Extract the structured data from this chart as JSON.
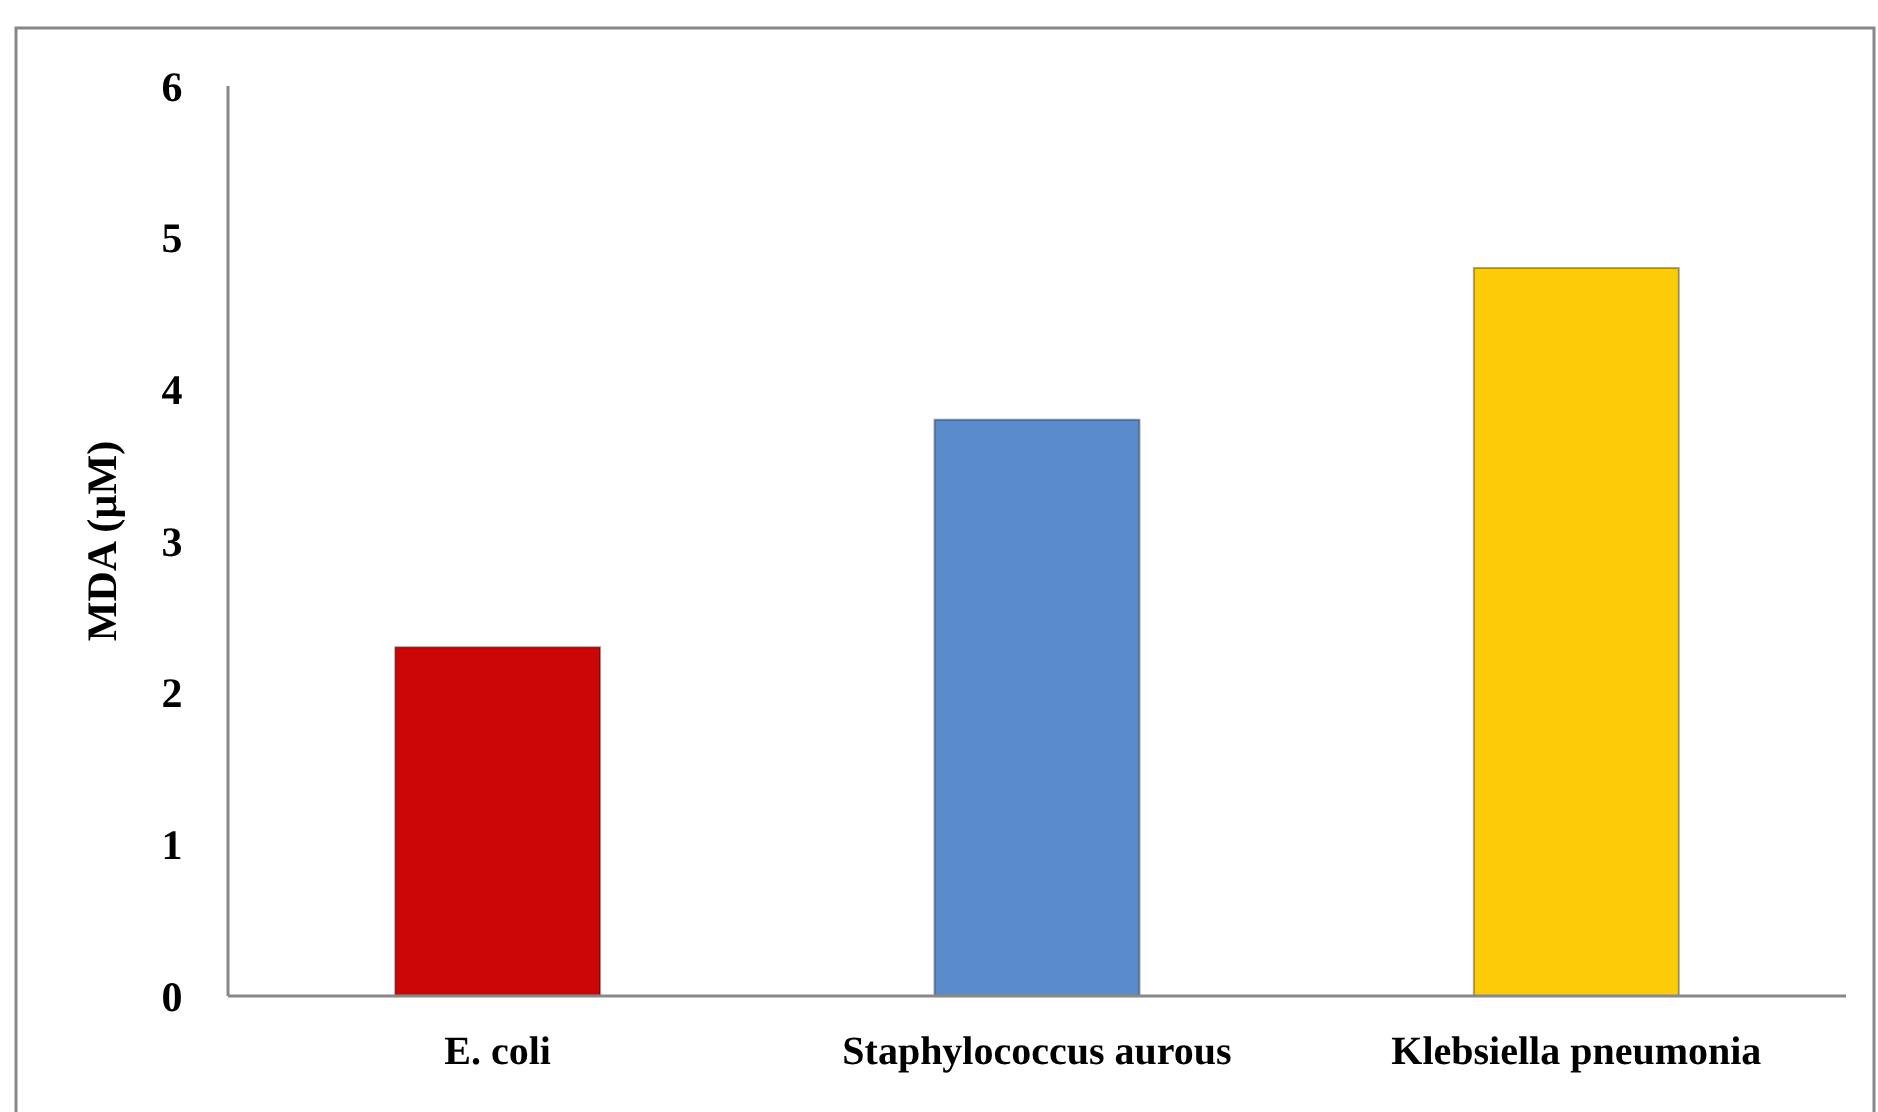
{
  "chart_data": {
    "type": "bar",
    "ylabel": "MDA (µM)",
    "categories": [
      "E. coli",
      "Staphylococcus aurous",
      "Klebsiella pneumonia"
    ],
    "values": [
      2.3,
      3.8,
      4.8
    ],
    "colors": [
      "#cc0606",
      "#5a8bcb",
      "#fdcc08"
    ],
    "ylim": [
      0,
      6
    ],
    "yticks": [
      0,
      1,
      2,
      3,
      4,
      5,
      6
    ],
    "grid": false
  }
}
